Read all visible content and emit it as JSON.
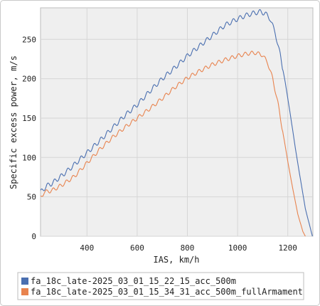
{
  "chart_data": {
    "type": "line",
    "title": "",
    "xlabel": "IAS, km/h",
    "ylabel": "Specific excess power, m/s",
    "xlim": [
      215,
      1300
    ],
    "ylim": [
      0,
      290
    ],
    "x_ticks": [
      400,
      600,
      800,
      1000,
      1200
    ],
    "y_ticks": [
      0,
      50,
      100,
      150,
      200,
      250
    ],
    "grid": true,
    "legend_position": "bottom",
    "series": [
      {
        "name": "fa_18c_late-2025_03_01_15_22_15_acc_500m",
        "color": "#4a6fb0",
        "oscillation": 3,
        "x": [
          215,
          240,
          260,
          300,
          340,
          400,
          450,
          500,
          550,
          600,
          650,
          700,
          750,
          800,
          850,
          900,
          950,
          1000,
          1030,
          1060,
          1090,
          1110,
          1130,
          1150,
          1170,
          1190,
          1210,
          1230,
          1250,
          1270,
          1290,
          1298
        ],
        "y": [
          56,
          64,
          67,
          77,
          88,
          106,
          121,
          137,
          153,
          167,
          184,
          200,
          214,
          229,
          242,
          255,
          268,
          276,
          280,
          283,
          285,
          283,
          276,
          258,
          230,
          195,
          155,
          112,
          73,
          35,
          10,
          0
        ]
      },
      {
        "name": "fa_18c_late-2025_03_01_15_34_31_acc_500m_fullArmament",
        "color": "#e8834e",
        "oscillation": 2.5,
        "x": [
          215,
          230,
          260,
          300,
          350,
          400,
          450,
          500,
          550,
          600,
          650,
          700,
          750,
          800,
          850,
          900,
          950,
          1000,
          1040,
          1070,
          1100,
          1120,
          1140,
          1160,
          1180,
          1200,
          1220,
          1240,
          1260,
          1270
        ],
        "y": [
          49,
          56,
          58,
          65,
          76,
          93,
          110,
          125,
          138,
          150,
          162,
          175,
          189,
          201,
          210,
          218,
          224,
          229,
          232,
          233,
          230,
          220,
          200,
          170,
          133,
          95,
          60,
          28,
          6,
          0
        ]
      }
    ]
  }
}
